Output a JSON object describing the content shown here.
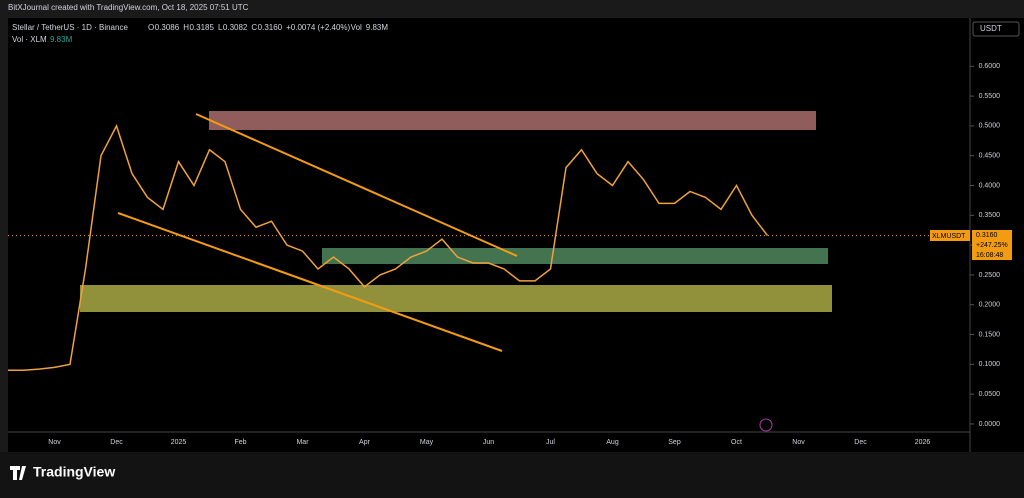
{
  "header": {
    "credit": "BitXJournal created with TradingView.com, Oct 18, 2025 07:51 UTC",
    "symbol": "Stellar / TetherUS · 1D · Binance",
    "ohlc": [
      "O",
      "0.3086",
      "H",
      "0.3185",
      "L",
      "0.3082",
      "C",
      "0.3160",
      "+0.0074 (+2.40%)",
      "Vol",
      "9.83M"
    ],
    "volume_label": "Vol · XLM",
    "volume_value": "9.83M"
  },
  "currency": "USDT",
  "price_tag": {
    "symbol": "XLMUSDT",
    "price": "0.3160",
    "change": "+247.25%",
    "countdown": "16:08:48"
  },
  "brand": "TradingView",
  "chart_data": {
    "type": "line",
    "color": "#f0a23a",
    "categories": [
      null,
      null,
      null,
      "Nov",
      null,
      null,
      null,
      "Dec",
      null,
      null,
      null,
      "2025",
      null,
      null,
      null,
      "Feb",
      null,
      null,
      null,
      "Mar",
      null,
      null,
      null,
      "Apr",
      null,
      null,
      null,
      "May",
      null,
      null,
      null,
      "Jun",
      null,
      null,
      null,
      "Jul",
      null,
      null,
      null,
      "Aug",
      null,
      null,
      null,
      "Sep",
      null,
      null,
      null,
      "Oct",
      null,
      null,
      null,
      "Nov",
      null,
      null,
      null,
      "Dec",
      null,
      null,
      null,
      "2026"
    ],
    "values": [
      0.09,
      0.09,
      0.092,
      0.095,
      0.1,
      0.26,
      0.45,
      0.5,
      0.42,
      0.38,
      0.36,
      0.44,
      0.4,
      0.46,
      0.44,
      0.36,
      0.33,
      0.34,
      0.3,
      0.29,
      0.26,
      0.28,
      0.26,
      0.23,
      0.25,
      0.26,
      0.28,
      0.29,
      0.31,
      0.28,
      0.27,
      0.27,
      0.26,
      0.24,
      0.24,
      0.26,
      0.43,
      0.46,
      0.42,
      0.4,
      0.44,
      0.41,
      0.37,
      0.37,
      0.39,
      0.38,
      0.36,
      0.4,
      0.35,
      0.316,
      null,
      null,
      null,
      null,
      null,
      null,
      null,
      null,
      null,
      null
    ],
    "ylim": [
      -0.0135,
      0.681
    ],
    "yticks": [
      {
        "value": 0,
        "label": "0.0000"
      },
      {
        "value": 0.05,
        "label": "0.0500"
      },
      {
        "value": 0.1,
        "label": "0.1000"
      },
      {
        "value": 0.15,
        "label": "0.1500"
      },
      {
        "value": 0.2,
        "label": "0.2000"
      },
      {
        "value": 0.25,
        "label": "0.2500"
      },
      {
        "value": 0.3,
        "label": "0.3000"
      },
      {
        "value": 0.35,
        "label": "0.3500"
      },
      {
        "value": 0.4,
        "label": "0.4000"
      },
      {
        "value": 0.45,
        "label": "0.4500"
      },
      {
        "value": 0.5,
        "label": "0.5000"
      },
      {
        "value": 0.55,
        "label": "0.5500"
      },
      {
        "value": 0.6,
        "label": "0.6000"
      }
    ]
  }
}
